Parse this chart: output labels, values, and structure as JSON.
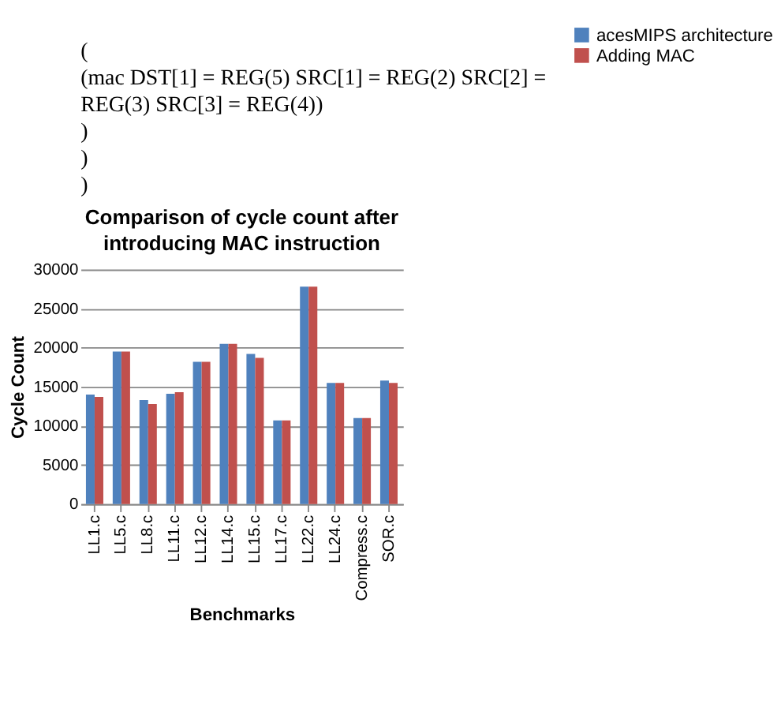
{
  "chart_data": {
    "type": "bar",
    "title": "Comparison of cycle count after introducing MAC instruction",
    "annotations": [
      "(",
      "(mac DST[1] = REG(5) SRC[1] = REG(2) SRC[2] =",
      "REG(3) SRC[3] = REG(4))",
      ")",
      ")",
      ")"
    ],
    "xlabel": "Benchmarks",
    "ylabel": "Cycle Count",
    "categories": [
      "LL1.c",
      "LL5.c",
      "LL8.c",
      "LL11.c",
      "LL12.c",
      "LL14.c",
      "LL15.c",
      "LL17.c",
      "LL22.c",
      "LL24.c",
      "Compress.c",
      "SOR.c"
    ],
    "series": [
      {
        "name": "acesMIPS architecture",
        "color": "#4f81bd",
        "values": [
          14000,
          19500,
          13300,
          14100,
          18200,
          20500,
          19200,
          10700,
          27800,
          15500,
          11000,
          15800
        ]
      },
      {
        "name": "Adding MAC",
        "color": "#c0504d",
        "values": [
          13700,
          19500,
          12800,
          14300,
          18200,
          20500,
          18700,
          10700,
          27800,
          15500,
          11000,
          15500
        ]
      }
    ],
    "ylim": [
      0,
      30000
    ],
    "yticks": [
      0,
      5000,
      10000,
      15000,
      20000,
      25000,
      30000
    ],
    "grid": "y",
    "legend": "right"
  }
}
